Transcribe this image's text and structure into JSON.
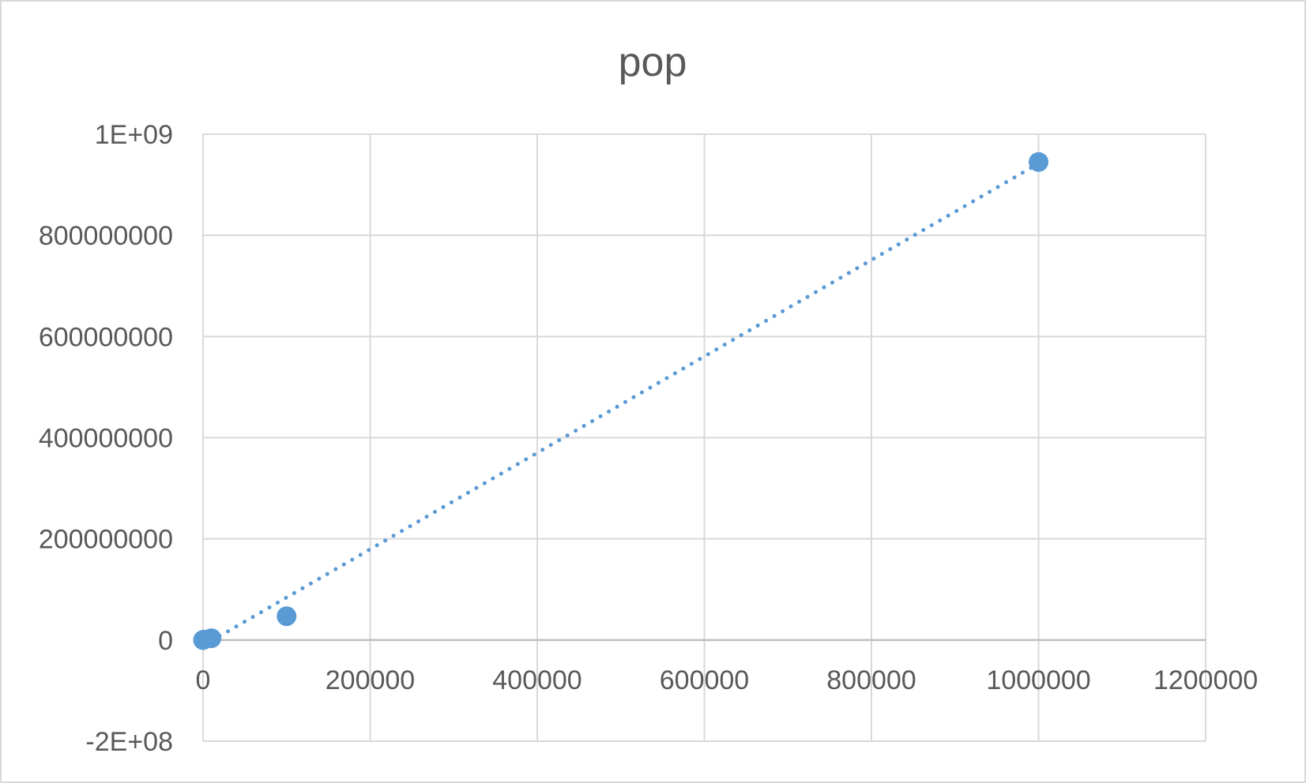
{
  "chart_data": {
    "type": "scatter",
    "title": "pop",
    "xlabel": "",
    "ylabel": "",
    "xlim": [
      0,
      1200000
    ],
    "ylim": [
      -200000000,
      1000000000
    ],
    "x_ticks": [
      {
        "value": 0,
        "label": "0"
      },
      {
        "value": 200000,
        "label": "200000"
      },
      {
        "value": 400000,
        "label": "400000"
      },
      {
        "value": 600000,
        "label": "600000"
      },
      {
        "value": 800000,
        "label": "800000"
      },
      {
        "value": 1000000,
        "label": "1000000"
      },
      {
        "value": 1200000,
        "label": "1200000"
      }
    ],
    "y_ticks": [
      {
        "value": 1000000000,
        "label": "1E+09"
      },
      {
        "value": 800000000,
        "label": "800000000"
      },
      {
        "value": 600000000,
        "label": "600000000"
      },
      {
        "value": 400000000,
        "label": "400000000"
      },
      {
        "value": 200000000,
        "label": "200000000"
      },
      {
        "value": 0,
        "label": "0"
      },
      {
        "value": -200000000,
        "label": "-2E+08"
      }
    ],
    "grid": true,
    "legend": "none",
    "series": [
      {
        "color": "#5b9bd5",
        "points": [
          {
            "x": 10,
            "y": 0
          },
          {
            "x": 100,
            "y": 50000
          },
          {
            "x": 1000,
            "y": 700000
          },
          {
            "x": 10000,
            "y": 3500000
          },
          {
            "x": 100000,
            "y": 47000000
          },
          {
            "x": 1000000,
            "y": 945000000
          }
        ],
        "trendline": {
          "style": "dotted",
          "x_range": [
            10000,
            1000000
          ],
          "y_range": [
            -1700000,
            942000000
          ]
        }
      }
    ]
  }
}
